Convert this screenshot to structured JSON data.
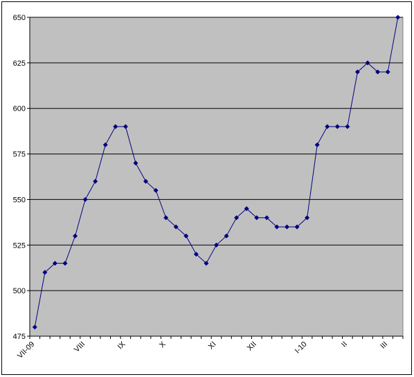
{
  "chart_data": {
    "type": "line",
    "categories": [
      "VII-09",
      null,
      null,
      null,
      null,
      "VIII",
      null,
      null,
      null,
      "IX",
      null,
      null,
      null,
      "X",
      null,
      null,
      null,
      null,
      "XI",
      null,
      null,
      null,
      "XII",
      null,
      null,
      null,
      null,
      "I-10",
      null,
      null,
      null,
      "II",
      null,
      null,
      null,
      "III",
      null
    ],
    "series": [
      {
        "color": "#000080",
        "values": [
          480,
          510,
          515,
          515,
          530,
          550,
          560,
          580,
          590,
          590,
          570,
          560,
          555,
          540,
          535,
          530,
          520,
          515,
          525,
          530,
          540,
          545,
          540,
          540,
          535,
          535,
          535,
          540,
          580,
          590,
          590,
          590,
          620,
          625,
          620,
          620,
          650
        ]
      }
    ],
    "ylim": [
      475,
      650
    ],
    "yticks": [
      475,
      500,
      525,
      550,
      575,
      600,
      625,
      650
    ],
    "grid": true
  }
}
